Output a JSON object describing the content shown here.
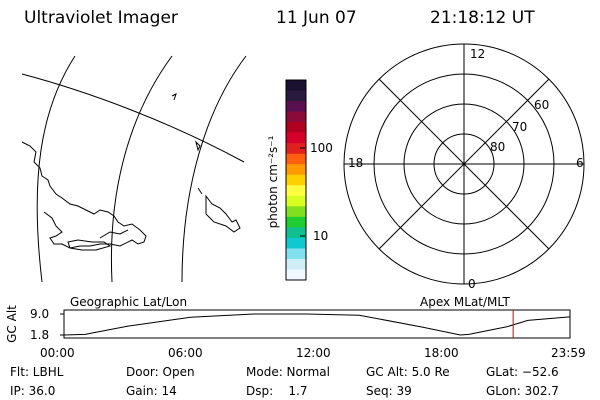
{
  "header": {
    "instrument": "Ultraviolet Imager",
    "date": "11 Jun 07",
    "time": "21:18:12 UT"
  },
  "colorbar": {
    "label": "photon cm⁻²s⁻¹",
    "ticks": [
      "100",
      "10"
    ],
    "colors": [
      "#1a1030",
      "#2a1a40",
      "#5a1050",
      "#8a0a3a",
      "#b00020",
      "#d4002a",
      "#e0201e",
      "#ff6010",
      "#ff9a00",
      "#ffd000",
      "#ffff40",
      "#d8ff20",
      "#80e020",
      "#20cc30",
      "#10c090",
      "#10c8d0",
      "#80e0f0",
      "#d0eef8",
      "#f0f8ff"
    ]
  },
  "polar_plot": {
    "mlt_labels": [
      "12",
      "18",
      "6",
      "0"
    ],
    "lat_labels": [
      "60",
      "70",
      "80"
    ]
  },
  "timeline": {
    "left_title": "Geographic Lat/Lon",
    "right_title": "Apex MLat/MLT",
    "ylabel": "GC Alt",
    "yticks": [
      "9.0",
      "1.8"
    ],
    "xticks": [
      "00:00",
      "06:00",
      "12:00",
      "18:00",
      "23:59"
    ],
    "marker_color": "#dd0000"
  },
  "chart_data": {
    "type": "line",
    "xlabel": "",
    "ylabel": "GC Alt",
    "xlim": [
      "00:00",
      "23:59"
    ],
    "ylim": [
      1.8,
      9.0
    ],
    "x_hours": [
      0,
      1,
      3,
      6,
      9,
      11.5,
      14,
      17,
      18.8,
      19.2,
      21,
      22,
      23.98
    ],
    "values": [
      1.8,
      2.0,
      4.8,
      7.9,
      9.0,
      9.0,
      8.6,
      4.5,
      1.8,
      2.0,
      4.6,
      6.8,
      8.0
    ],
    "current_time": "21:18:12"
  },
  "info": {
    "row1": [
      "Flt: LBHL",
      "Door: Open",
      "Mode: Normal",
      "GC Alt: 5.0 Re",
      "GLat: −52.6"
    ],
    "row2": [
      "IP: 36.0",
      "Gain: 14",
      "Dsp:    1.7",
      "Seq: 39",
      "GLon: 302.7"
    ]
  }
}
